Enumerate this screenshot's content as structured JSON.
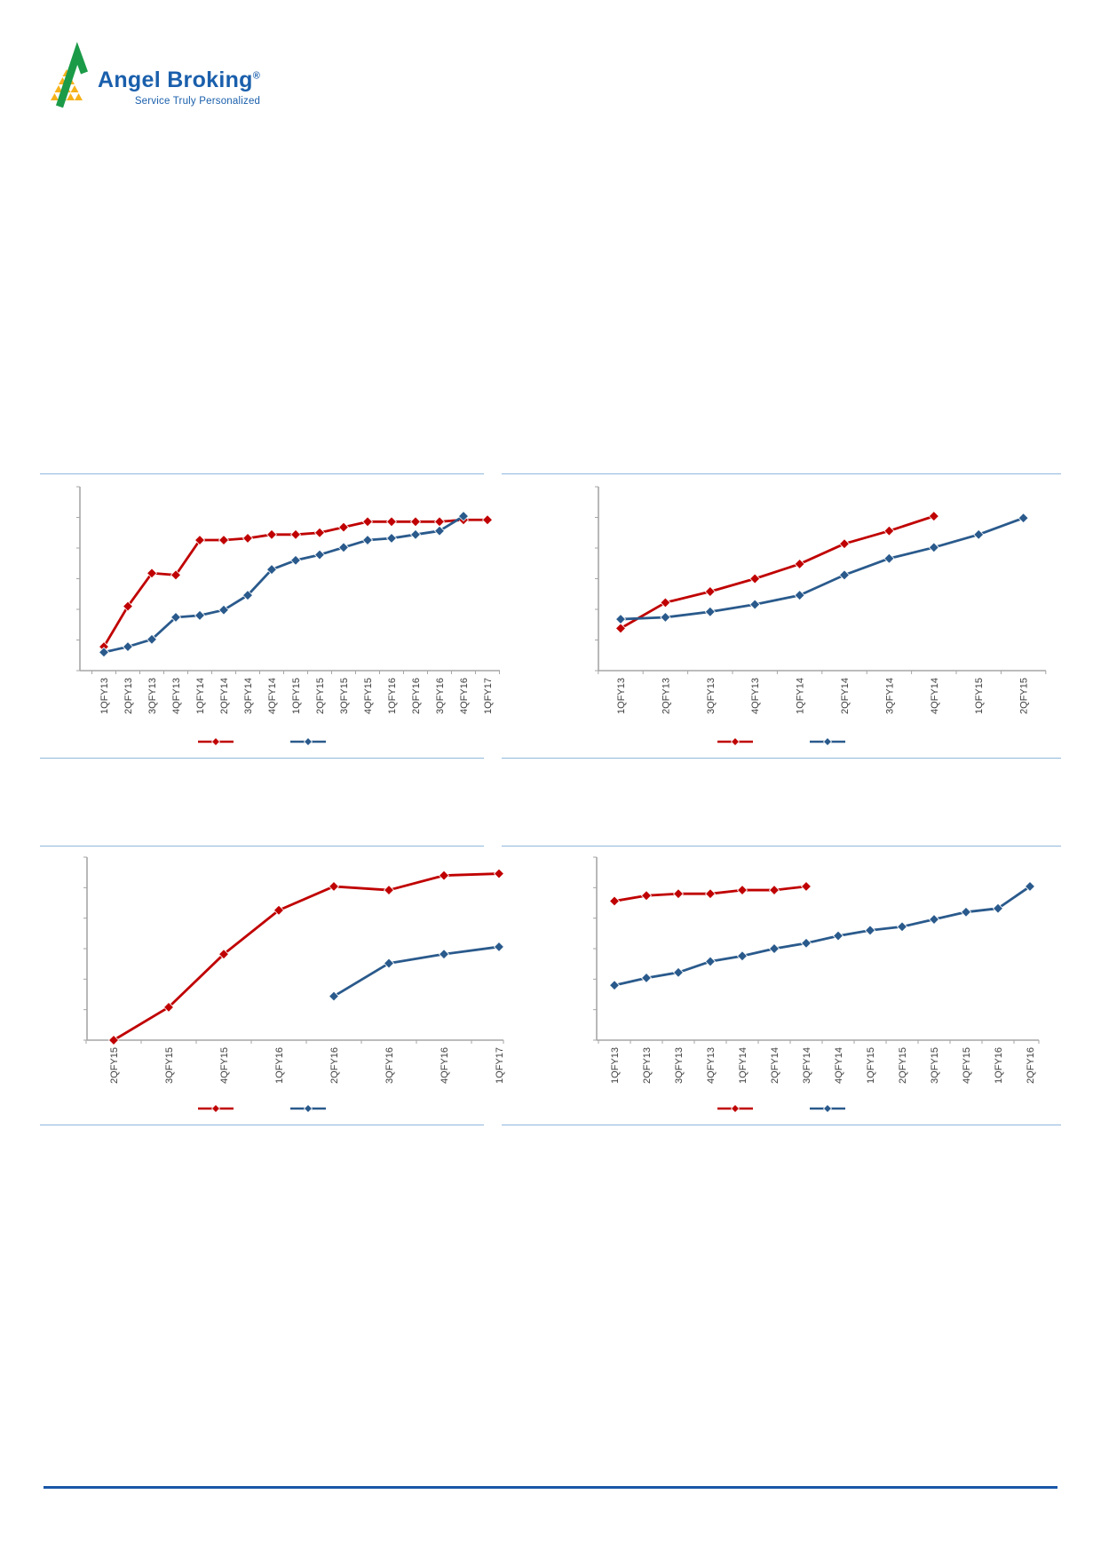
{
  "logo": {
    "brand": "Angel Broking",
    "registered": "®",
    "tagline": "Service Truly Personalized",
    "brand_color": "#1A5FAC",
    "green": "#1B9B48",
    "yellow": "#F6B21B"
  },
  "colors": {
    "series_red": "#C00000",
    "series_blue": "#2A5A8C",
    "axis": "#A6A6A6",
    "tick": "#A6A6A6",
    "label_text": "#3F3F3F",
    "divider": "#90B8DC",
    "footer_rule": "#1A57A8"
  },
  "chart_data": [
    {
      "type": "line",
      "title": "",
      "xlabel": "",
      "ylabel": "",
      "categories": [
        "1QFY13",
        "2QFY13",
        "3QFY13",
        "4QFY13",
        "1QFY14",
        "2QFY14",
        "3QFY14",
        "4QFY14",
        "1QFY15",
        "2QFY15",
        "3QFY15",
        "4QFY15",
        "1QFY16",
        "2QFY16",
        "3QFY16",
        "4QFY16",
        "1QFY17"
      ],
      "series": [
        {
          "name": "red-series",
          "color": "#C00000",
          "values": [
            13,
            35,
            53,
            52,
            71,
            71,
            72,
            74,
            74,
            75,
            78,
            81,
            81,
            81,
            81,
            82,
            82
          ]
        },
        {
          "name": "blue-series",
          "color": "#2A5A8C",
          "values": [
            10,
            13,
            17,
            29,
            30,
            33,
            41,
            55,
            60,
            63,
            67,
            71,
            72,
            74,
            76,
            84,
            null
          ]
        }
      ],
      "values_scale": "relative-index-0-100-estimated",
      "ylim": [
        0,
        100
      ],
      "grid": false,
      "y_axis": {
        "tick_labels_visible": false,
        "tick_count": 7
      },
      "x_axis": {
        "tick_labels_rotated": true
      },
      "legend": {
        "position": "bottom-center",
        "labels_visible": false,
        "entries": [
          {
            "color": "#C00000"
          },
          {
            "color": "#2A5A8C"
          }
        ]
      }
    },
    {
      "type": "line",
      "title": "",
      "xlabel": "",
      "ylabel": "",
      "categories": [
        "1QFY13",
        "2QFY13",
        "3QFY13",
        "4QFY13",
        "1QFY14",
        "2QFY14",
        "3QFY14",
        "4QFY14",
        "1QFY15",
        "2QFY15"
      ],
      "series": [
        {
          "name": "red-series",
          "color": "#C00000",
          "values": [
            23,
            37,
            43,
            50,
            58,
            69,
            76,
            84,
            null,
            null
          ]
        },
        {
          "name": "blue-series",
          "color": "#2A5A8C",
          "values": [
            28,
            29,
            32,
            36,
            41,
            52,
            61,
            67,
            74,
            83
          ]
        }
      ],
      "values_scale": "relative-index-0-100-estimated",
      "ylim": [
        0,
        100
      ],
      "grid": false,
      "y_axis": {
        "tick_labels_visible": false,
        "tick_count": 7
      },
      "x_axis": {
        "tick_labels_rotated": true
      },
      "legend": {
        "position": "bottom-center",
        "labels_visible": false,
        "entries": [
          {
            "color": "#C00000"
          },
          {
            "color": "#2A5A8C"
          }
        ]
      }
    },
    {
      "type": "line",
      "title": "",
      "xlabel": "",
      "ylabel": "",
      "categories": [
        "2QFY15",
        "3QFY15",
        "4QFY15",
        "1QFY16",
        "2QFY16",
        "3QFY16",
        "4QFY16",
        "1QFY17"
      ],
      "series": [
        {
          "name": "red-series",
          "color": "#C00000",
          "values": [
            0,
            18,
            47,
            71,
            84,
            82,
            90,
            91
          ]
        },
        {
          "name": "blue-series",
          "color": "#2A5A8C",
          "values": [
            null,
            null,
            null,
            null,
            24,
            42,
            47,
            51
          ]
        }
      ],
      "values_scale": "relative-index-0-100-estimated",
      "ylim": [
        0,
        100
      ],
      "grid": false,
      "y_axis": {
        "tick_labels_visible": false,
        "tick_count": 7
      },
      "x_axis": {
        "tick_labels_rotated": true
      },
      "legend": {
        "position": "bottom-center",
        "labels_visible": false,
        "entries": [
          {
            "color": "#C00000"
          },
          {
            "color": "#2A5A8C"
          }
        ]
      }
    },
    {
      "type": "line",
      "title": "",
      "xlabel": "",
      "ylabel": "",
      "categories": [
        "1QFY13",
        "2QFY13",
        "3QFY13",
        "4QFY13",
        "1QFY14",
        "2QFY14",
        "3QFY14",
        "4QFY14",
        "1QFY15",
        "2QFY15",
        "3QFY15",
        "4QFY15",
        "1QFY16",
        "2QFY16"
      ],
      "series": [
        {
          "name": "red-series",
          "color": "#C00000",
          "values": [
            76,
            79,
            80,
            80,
            82,
            82,
            84,
            null,
            null,
            null,
            null,
            null,
            null,
            null
          ]
        },
        {
          "name": "blue-series",
          "color": "#2A5A8C",
          "values": [
            30,
            34,
            37,
            43,
            46,
            50,
            53,
            57,
            60,
            62,
            66,
            70,
            72,
            84
          ]
        }
      ],
      "values_scale": "relative-index-0-100-estimated",
      "ylim": [
        0,
        100
      ],
      "grid": false,
      "y_axis": {
        "tick_labels_visible": false,
        "tick_count": 7
      },
      "x_axis": {
        "tick_labels_rotated": true
      },
      "legend": {
        "position": "bottom-center",
        "labels_visible": false,
        "entries": [
          {
            "color": "#C00000"
          },
          {
            "color": "#2A5A8C"
          }
        ]
      }
    }
  ]
}
